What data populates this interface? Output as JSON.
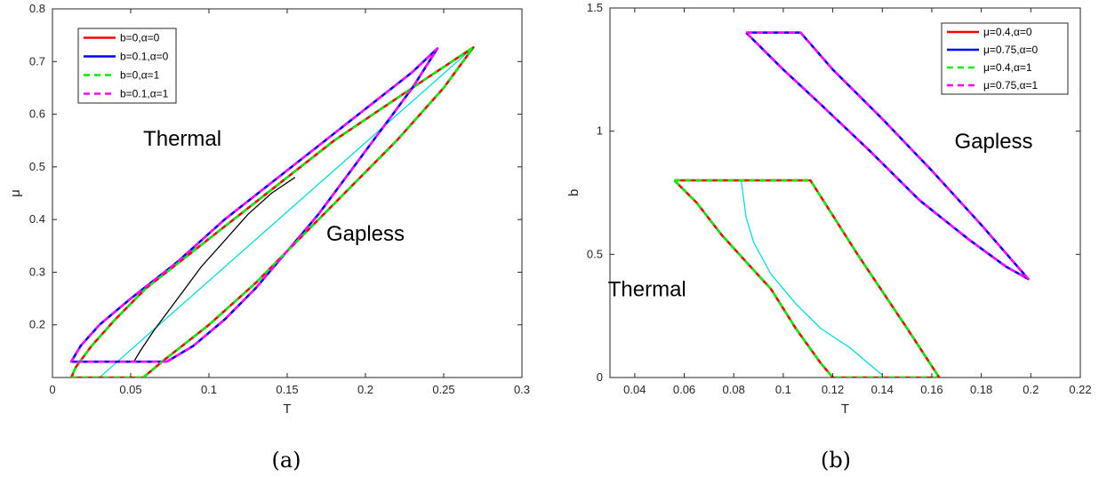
{
  "chart_data": [
    {
      "type": "line",
      "panel_label": "(a)",
      "xlabel": "T",
      "ylabel": "μ",
      "xlim": [
        0,
        0.3
      ],
      "ylim": [
        0.1,
        0.8
      ],
      "xticks": [
        "0",
        "0.05",
        "0.1",
        "0.15",
        "0.2",
        "0.25",
        "0.3"
      ],
      "xtick_values": [
        0,
        0.05,
        0.1,
        0.15,
        0.2,
        0.25,
        0.3
      ],
      "yticks": [
        "0.2",
        "0.3",
        "0.4",
        "0.5",
        "0.6",
        "0.7",
        "0.8"
      ],
      "ytick_values": [
        0.2,
        0.3,
        0.4,
        0.5,
        0.6,
        0.7,
        0.8
      ],
      "legend_position": "top-left",
      "region_labels": [
        {
          "text": "Thermal",
          "x": 0.083,
          "y": 0.54
        },
        {
          "text": "Gapless",
          "x": 0.2,
          "y": 0.36
        }
      ],
      "series": [
        {
          "name": "b=0,α=0",
          "color": "#ff0000",
          "style": "solid",
          "x": [
            0.058,
            0.07,
            0.1,
            0.13,
            0.16,
            0.19,
            0.22,
            0.25,
            0.269,
            0.24,
            0.21,
            0.18,
            0.15,
            0.12,
            0.09,
            0.06,
            0.04,
            0.025,
            0.015,
            0.012,
            0.058
          ],
          "y": [
            0.1,
            0.13,
            0.2,
            0.28,
            0.37,
            0.46,
            0.55,
            0.65,
            0.727,
            0.67,
            0.61,
            0.55,
            0.48,
            0.41,
            0.34,
            0.27,
            0.21,
            0.16,
            0.12,
            0.1,
            0.1
          ]
        },
        {
          "name": "b=0.1,α=0",
          "color": "#0000ff",
          "style": "solid",
          "x": [
            0.073,
            0.09,
            0.11,
            0.13,
            0.15,
            0.17,
            0.19,
            0.21,
            0.23,
            0.246,
            0.23,
            0.2,
            0.17,
            0.14,
            0.11,
            0.08,
            0.05,
            0.03,
            0.018,
            0.012,
            0.073
          ],
          "y": [
            0.13,
            0.16,
            0.21,
            0.27,
            0.34,
            0.41,
            0.49,
            0.57,
            0.65,
            0.725,
            0.68,
            0.61,
            0.54,
            0.47,
            0.4,
            0.32,
            0.25,
            0.2,
            0.16,
            0.13,
            0.13
          ]
        },
        {
          "name": "b=0,α=1",
          "color": "#00ee00",
          "style": "dashed",
          "x": [
            0.058,
            0.07,
            0.1,
            0.13,
            0.16,
            0.19,
            0.22,
            0.25,
            0.269,
            0.24,
            0.21,
            0.18,
            0.15,
            0.12,
            0.09,
            0.06,
            0.04,
            0.025,
            0.015,
            0.012,
            0.058
          ],
          "y": [
            0.1,
            0.13,
            0.2,
            0.28,
            0.37,
            0.46,
            0.55,
            0.65,
            0.727,
            0.67,
            0.61,
            0.55,
            0.48,
            0.41,
            0.34,
            0.27,
            0.21,
            0.16,
            0.12,
            0.1,
            0.1
          ]
        },
        {
          "name": "b=0.1,α=1",
          "color": "#ff00ff",
          "style": "dashed",
          "x": [
            0.073,
            0.09,
            0.11,
            0.13,
            0.15,
            0.17,
            0.19,
            0.21,
            0.23,
            0.246,
            0.23,
            0.2,
            0.17,
            0.14,
            0.11,
            0.08,
            0.05,
            0.03,
            0.018,
            0.012,
            0.073
          ],
          "y": [
            0.13,
            0.16,
            0.21,
            0.27,
            0.34,
            0.41,
            0.49,
            0.57,
            0.65,
            0.725,
            0.68,
            0.61,
            0.54,
            0.47,
            0.4,
            0.32,
            0.25,
            0.2,
            0.16,
            0.13,
            0.13
          ]
        }
      ],
      "extra_lines": [
        {
          "color": "#00dddd",
          "x": [
            0.03,
            0.269
          ],
          "y": [
            0.1,
            0.727
          ]
        },
        {
          "color": "#000000",
          "x": [
            0.052,
            0.056,
            0.065,
            0.08,
            0.095,
            0.11,
            0.125,
            0.14,
            0.155
          ],
          "y": [
            0.13,
            0.15,
            0.19,
            0.25,
            0.31,
            0.36,
            0.41,
            0.45,
            0.48
          ]
        }
      ]
    },
    {
      "type": "line",
      "panel_label": "(b)",
      "xlabel": "T",
      "ylabel": "b",
      "xlim": [
        0.03,
        0.22
      ],
      "ylim": [
        0,
        1.5
      ],
      "xticks": [
        "0.04",
        "0.06",
        "0.08",
        "0.1",
        "0.12",
        "0.14",
        "0.16",
        "0.18",
        "0.2",
        "0.22"
      ],
      "xtick_values": [
        0.04,
        0.06,
        0.08,
        0.1,
        0.12,
        0.14,
        0.16,
        0.18,
        0.2,
        0.22
      ],
      "yticks": [
        "0",
        "0.5",
        "1",
        "1.5"
      ],
      "ytick_values": [
        0,
        0.5,
        1,
        1.5
      ],
      "legend_position": "top-right",
      "region_labels": [
        {
          "text": "Thermal",
          "x": 0.045,
          "y": 0.33
        },
        {
          "text": "Gapless",
          "x": 0.185,
          "y": 0.93
        }
      ],
      "series": [
        {
          "name": "μ=0.4,α=0",
          "color": "#ff0000",
          "style": "solid",
          "x": [
            0.056,
            0.111,
            0.13,
            0.15,
            0.163,
            0.12,
            0.115,
            0.105,
            0.095,
            0.085,
            0.075,
            0.065,
            0.056
          ],
          "y": [
            0.8,
            0.8,
            0.5,
            0.2,
            0.0,
            0.0,
            0.06,
            0.2,
            0.36,
            0.47,
            0.58,
            0.71,
            0.8
          ]
        },
        {
          "name": "μ=0.75,α=0",
          "color": "#0000ff",
          "style": "solid",
          "x": [
            0.085,
            0.107,
            0.12,
            0.14,
            0.16,
            0.18,
            0.199,
            0.19,
            0.175,
            0.155,
            0.135,
            0.115,
            0.1,
            0.085
          ],
          "y": [
            1.4,
            1.4,
            1.25,
            1.05,
            0.84,
            0.62,
            0.4,
            0.45,
            0.56,
            0.72,
            0.92,
            1.11,
            1.25,
            1.4
          ]
        },
        {
          "name": "μ=0.4,α=1",
          "color": "#00ee00",
          "style": "dashed",
          "x": [
            0.056,
            0.111,
            0.13,
            0.15,
            0.163,
            0.12,
            0.115,
            0.105,
            0.095,
            0.085,
            0.075,
            0.065,
            0.056
          ],
          "y": [
            0.8,
            0.8,
            0.5,
            0.2,
            0.0,
            0.0,
            0.06,
            0.2,
            0.36,
            0.47,
            0.58,
            0.71,
            0.8
          ]
        },
        {
          "name": "μ=0.75,α=1",
          "color": "#ff00ff",
          "style": "dashed",
          "x": [
            0.085,
            0.107,
            0.12,
            0.14,
            0.16,
            0.18,
            0.199,
            0.19,
            0.175,
            0.155,
            0.135,
            0.115,
            0.1,
            0.085
          ],
          "y": [
            1.4,
            1.4,
            1.25,
            1.05,
            0.84,
            0.62,
            0.4,
            0.45,
            0.56,
            0.72,
            0.92,
            1.11,
            1.25,
            1.4
          ]
        }
      ],
      "extra_lines": [
        {
          "color": "#00dddd",
          "x": [
            0.083,
            0.085,
            0.088,
            0.095,
            0.105,
            0.115,
            0.127,
            0.14
          ],
          "y": [
            0.8,
            0.65,
            0.55,
            0.42,
            0.3,
            0.2,
            0.12,
            0.01
          ]
        },
        {
          "color": "#000000",
          "x": [
            0.085,
            0.1,
            0.115,
            0.135,
            0.155,
            0.175,
            0.19,
            0.199
          ],
          "y": [
            1.4,
            1.25,
            1.11,
            0.92,
            0.72,
            0.56,
            0.45,
            0.4
          ]
        }
      ]
    }
  ]
}
